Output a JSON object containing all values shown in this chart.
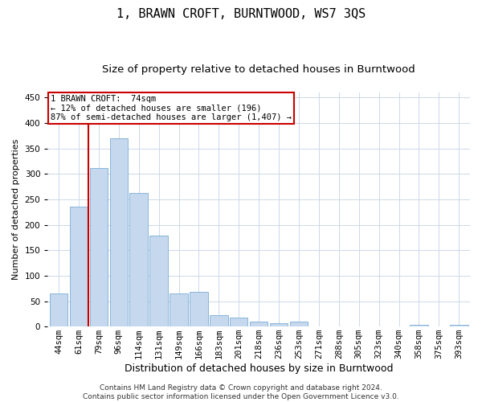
{
  "title": "1, BRAWN CROFT, BURNTWOOD, WS7 3QS",
  "subtitle": "Size of property relative to detached houses in Burntwood",
  "xlabel": "Distribution of detached houses by size in Burntwood",
  "ylabel": "Number of detached properties",
  "categories": [
    "44sqm",
    "61sqm",
    "79sqm",
    "96sqm",
    "114sqm",
    "131sqm",
    "149sqm",
    "166sqm",
    "183sqm",
    "201sqm",
    "218sqm",
    "236sqm",
    "253sqm",
    "271sqm",
    "288sqm",
    "305sqm",
    "323sqm",
    "340sqm",
    "358sqm",
    "375sqm",
    "393sqm"
  ],
  "values": [
    65,
    236,
    312,
    370,
    263,
    178,
    65,
    68,
    22,
    17,
    10,
    6,
    10,
    1,
    1,
    1,
    0,
    0,
    4,
    0,
    4
  ],
  "bar_color": "#c5d8ed",
  "bar_edge_color": "#7aaed6",
  "annotation_text": "1 BRAWN CROFT:  74sqm\n← 12% of detached houses are smaller (196)\n87% of semi-detached houses are larger (1,407) →",
  "annotation_box_color": "#ffffff",
  "annotation_box_edge_color": "#cc0000",
  "vline_color": "#cc0000",
  "footer_text": "Contains HM Land Registry data © Crown copyright and database right 2024.\nContains public sector information licensed under the Open Government Licence v3.0.",
  "bg_color": "#ffffff",
  "grid_color": "#ccd9e8",
  "ylim": [
    0,
    460
  ],
  "title_fontsize": 11,
  "subtitle_fontsize": 9.5,
  "xlabel_fontsize": 9,
  "ylabel_fontsize": 8,
  "tick_fontsize": 7.5,
  "footer_fontsize": 6.5,
  "vline_position": 1.5
}
